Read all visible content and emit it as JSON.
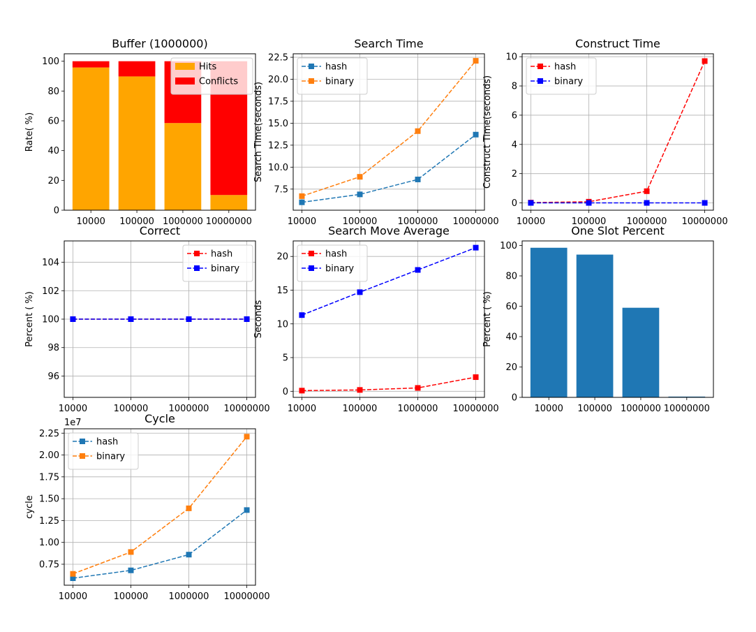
{
  "chart_data": [
    {
      "type": "bar",
      "stacked": true,
      "title": "Buffer (1000000)",
      "xlabel": "",
      "ylabel": "Rate( %)",
      "categories": [
        "10000",
        "100000",
        "1000000",
        "10000000"
      ],
      "series": [
        {
          "name": "Hits",
          "color": "#ffa500",
          "values": [
            95.8,
            89.8,
            58.5,
            10.2
          ]
        },
        {
          "name": "Conflicts",
          "color": "#ff0000",
          "values": [
            4.2,
            10.2,
            41.5,
            89.8
          ]
        }
      ],
      "ylim": [
        0,
        105
      ],
      "yticks": [
        0,
        20,
        40,
        60,
        80,
        100
      ],
      "grid": false,
      "legend": "top-right"
    },
    {
      "type": "line",
      "title": "Search Time",
      "xlabel": "",
      "ylabel": "Search Time(seconds)",
      "categories": [
        "10000",
        "100000",
        "1000000",
        "10000000"
      ],
      "series": [
        {
          "name": "hash",
          "color": "#1f77b4",
          "values": [
            6.0,
            6.9,
            8.6,
            13.7
          ]
        },
        {
          "name": "binary",
          "color": "#ff7f0e",
          "values": [
            6.7,
            8.9,
            14.1,
            22.1
          ]
        }
      ],
      "ylim": [
        5.1,
        22.9
      ],
      "yticks": [
        7.5,
        10.0,
        12.5,
        15.0,
        17.5,
        20.0,
        22.5
      ],
      "ytick_labels": [
        "7.5",
        "10.0",
        "12.5",
        "15.0",
        "17.5",
        "20.0",
        "22.5"
      ],
      "grid": true,
      "legend": "top-left"
    },
    {
      "type": "line",
      "title": "Construct Time",
      "xlabel": "",
      "ylabel": "Construct Time(seconds)",
      "categories": [
        "10000",
        "100000",
        "1000000",
        "10000000"
      ],
      "series": [
        {
          "name": "hash",
          "color": "#ff0000",
          "values": [
            0.02,
            0.08,
            0.8,
            9.7
          ]
        },
        {
          "name": "binary",
          "color": "#0000ff",
          "values": [
            0.0,
            0.0,
            0.0,
            0.0
          ]
        }
      ],
      "ylim": [
        -0.5,
        10.2
      ],
      "yticks": [
        0,
        2,
        4,
        6,
        8,
        10
      ],
      "grid": true,
      "legend": "top-left"
    },
    {
      "type": "line",
      "title": "Correct",
      "xlabel": "",
      "ylabel": "Percent ( %)",
      "categories": [
        "10000",
        "100000",
        "1000000",
        "10000000"
      ],
      "series": [
        {
          "name": "hash",
          "color": "#ff0000",
          "values": [
            100,
            100,
            100,
            100
          ]
        },
        {
          "name": "binary",
          "color": "#0000ff",
          "values": [
            100,
            100,
            100,
            100
          ]
        }
      ],
      "ylim": [
        94.5,
        105.5
      ],
      "yticks": [
        96,
        98,
        100,
        102,
        104
      ],
      "grid": true,
      "legend": "top-right"
    },
    {
      "type": "line",
      "title": "Search Move Average",
      "xlabel": "",
      "ylabel": "Seconds",
      "categories": [
        "10000",
        "100000",
        "1000000",
        "10000000"
      ],
      "series": [
        {
          "name": "hash",
          "color": "#ff0000",
          "values": [
            0.1,
            0.2,
            0.5,
            2.1
          ]
        },
        {
          "name": "binary",
          "color": "#0000ff",
          "values": [
            11.3,
            14.7,
            18.0,
            21.3
          ]
        }
      ],
      "ylim": [
        -0.9,
        22.3
      ],
      "yticks": [
        0,
        5,
        10,
        15,
        20
      ],
      "grid": true,
      "legend": "top-left"
    },
    {
      "type": "bar",
      "title": "One Slot Percent",
      "xlabel": "",
      "ylabel": "Percent ( %)",
      "categories": [
        "10000",
        "100000",
        "1000000",
        "10000000"
      ],
      "series": [
        {
          "name": "",
          "color": "#1f77b4",
          "values": [
            98.5,
            94.0,
            59.0,
            0.5
          ]
        }
      ],
      "ylim": [
        0,
        103
      ],
      "yticks": [
        0,
        20,
        40,
        60,
        80,
        100
      ],
      "grid": false,
      "legend": "none"
    },
    {
      "type": "line",
      "title": "Cycle",
      "xlabel": "",
      "ylabel": "cycle",
      "offset_label": "1e7",
      "categories": [
        "10000",
        "100000",
        "1000000",
        "10000000"
      ],
      "series": [
        {
          "name": "hash",
          "color": "#1f77b4",
          "values": [
            0.59,
            0.68,
            0.86,
            1.37
          ]
        },
        {
          "name": "binary",
          "color": "#ff7f0e",
          "values": [
            0.64,
            0.89,
            1.39,
            2.21
          ]
        }
      ],
      "ylim": [
        0.51,
        2.3
      ],
      "yticks": [
        0.75,
        1.0,
        1.25,
        1.5,
        1.75,
        2.0,
        2.25
      ],
      "ytick_labels": [
        "0.75",
        "1.00",
        "1.25",
        "1.50",
        "1.75",
        "2.00",
        "2.25"
      ],
      "grid": true,
      "legend": "top-left"
    }
  ]
}
